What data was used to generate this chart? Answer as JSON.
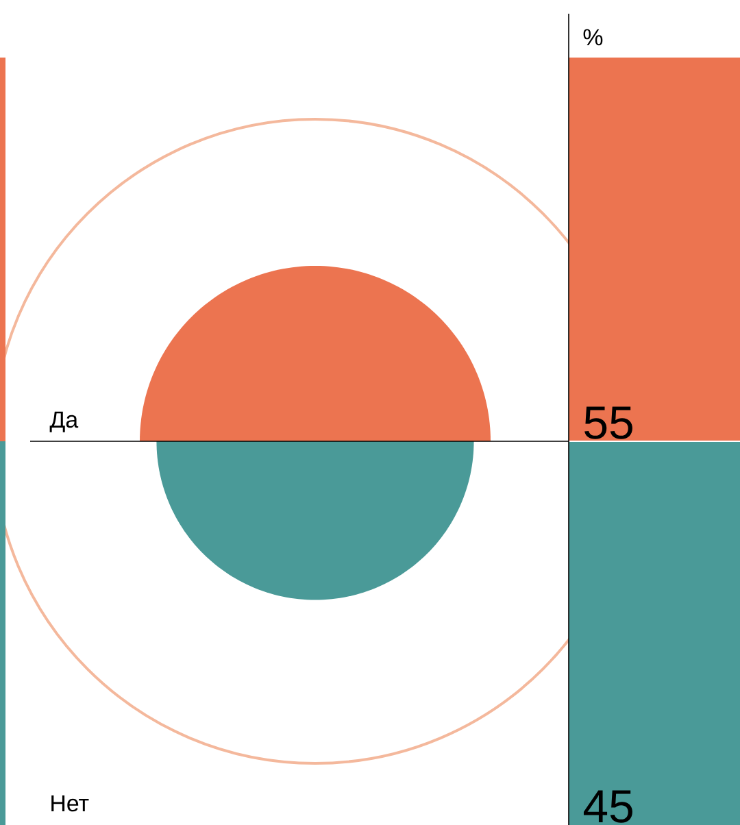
{
  "chart_data": {
    "type": "other",
    "title": "%",
    "categories": [
      "Да",
      "Нет"
    ],
    "values": [
      55,
      45
    ],
    "colors": [
      "#ec7450",
      "#4a9a98"
    ],
    "data_labels": true
  }
}
